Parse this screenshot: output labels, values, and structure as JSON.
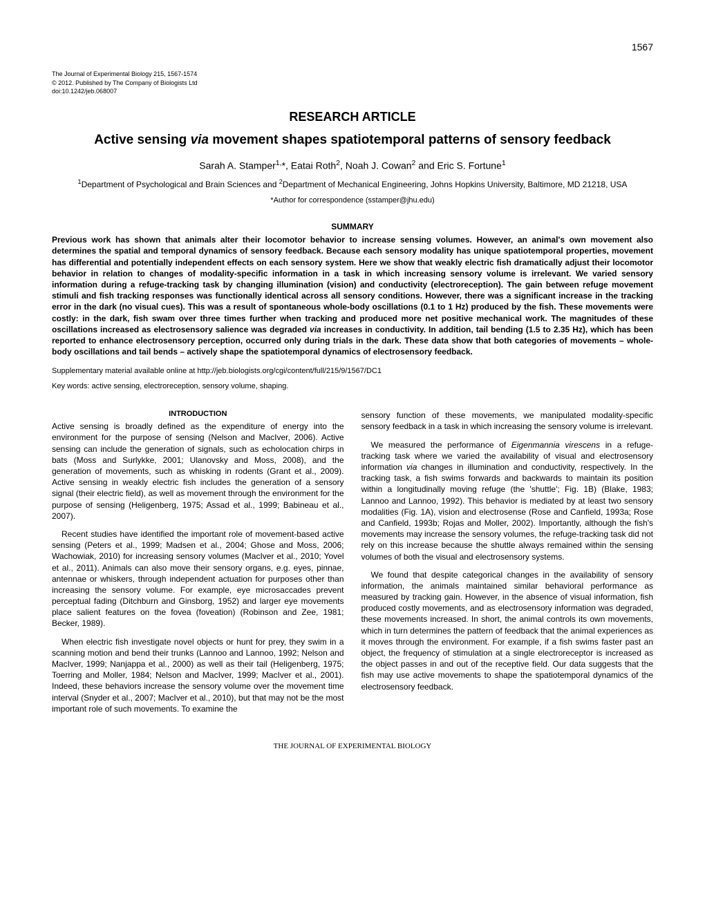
{
  "page_number": "1567",
  "journal_info": {
    "line1": "The Journal of Experimental Biology 215, 1567-1574",
    "line2": "© 2012. Published by The Company of Biologists Ltd",
    "line3": "doi:10.1242/jeb.068007"
  },
  "article_type": "RESEARCH ARTICLE",
  "title_part1": "Active sensing ",
  "title_italic": "via",
  "title_part2": " movement shapes spatiotemporal patterns of sensory feedback",
  "authors_html": "Sarah A. Stamper<sup>1,</sup>*, Eatai Roth<sup>2</sup>, Noah J. Cowan<sup>2</sup> and Eric S. Fortune<sup>1</sup>",
  "affiliations_html": "<sup>1</sup>Department of Psychological and Brain Sciences and <sup>2</sup>Department of Mechanical Engineering, Johns Hopkins University, Baltimore, MD 21218, USA",
  "correspondence": "*Author for correspondence (sstamper@jhu.edu)",
  "summary_heading": "SUMMARY",
  "summary_text_html": "Previous work has shown that animals alter their locomotor behavior to increase sensing volumes. However, an animal's own movement also determines the spatial and temporal dynamics of sensory feedback. Because each sensory modality has unique spatiotemporal properties, movement has differential and potentially independent effects on each sensory system. Here we show that weakly electric fish dramatically adjust their locomotor behavior in relation to changes of modality-specific information in a task in which increasing sensory volume is irrelevant. We varied sensory information during a refuge-tracking task by changing illumination (vision) and conductivity (electroreception). The gain between refuge movement stimuli and fish tracking responses was functionally identical across all sensory conditions. However, there was a significant increase in the tracking error in the dark (no visual cues). This was a result of spontaneous whole-body oscillations (0.1 to 1 Hz) produced by the fish. These movements were costly: in the dark, fish swam over three times further when tracking and produced more net positive mechanical work. The magnitudes of these oscillations increased as electrosensory salience was degraded <span class=\"italic\">via</span> increases in conductivity. In addition, tail bending (1.5 to 2.35 Hz), which has been reported to enhance electrosensory perception, occurred only during trials in the dark. These data show that both categories of movements – whole-body oscillations and tail bends – actively shape the spatiotemporal dynamics of electrosensory feedback.",
  "supplementary": "Supplementary material available online at http://jeb.biologists.org/cgi/content/full/215/9/1567/DC1",
  "keywords": "Key words: active sensing, electroreception, sensory volume, shaping.",
  "intro_heading": "INTRODUCTION",
  "col1_para1": "Active sensing is broadly defined as the expenditure of energy into the environment for the purpose of sensing (Nelson and MacIver, 2006). Active sensing can include the generation of signals, such as echolocation chirps in bats (Moss and Surlykke, 2001; Ulanovsky and Moss, 2008), and the generation of movements, such as whisking in rodents (Grant et al., 2009). Active sensing in weakly electric fish includes the generation of a sensory signal (their electric field), as well as movement through the environment for the purpose of sensing (Heligenberg, 1975; Assad et al., 1999; Babineau et al., 2007).",
  "col1_para2": "Recent studies have identified the important role of movement-based active sensing (Peters et al., 1999; Madsen et al., 2004; Ghose and Moss, 2006; Wachowiak, 2010) for increasing sensory volumes (MacIver et al., 2010; Yovel et al., 2011). Animals can also move their sensory organs, e.g. eyes, pinnae, antennae or whiskers, through independent actuation for purposes other than increasing the sensory volume. For example, eye microsaccades prevent perceptual fading (Ditchburn and Ginsborg, 1952) and larger eye movements place salient features on the fovea (foveation) (Robinson and Zee, 1981; Becker, 1989).",
  "col1_para3": "When electric fish investigate novel objects or hunt for prey, they swim in a scanning motion and bend their trunks (Lannoo and Lannoo, 1992; Nelson and MacIver, 1999; Nanjappa et al., 2000) as well as their tail (Heligenberg, 1975; Toerring and Moller, 1984; Nelson and MacIver, 1999; MacIver et al., 2001). Indeed, these behaviors increase the sensory volume over the movement time interval (Snyder et al., 2007; MacIver et al., 2010), but that may not be the most important role of such movements. To examine the",
  "col2_para1": "sensory function of these movements, we manipulated modality-specific sensory feedback in a task in which increasing the sensory volume is irrelevant.",
  "col2_para2_html": "We measured the performance of <span class=\"italic\">Eigenmannia virescens</span> in a refuge-tracking task where we varied the availability of visual and electrosensory information <span class=\"italic\">via</span> changes in illumination and conductivity, respectively. In the tracking task, a fish swims forwards and backwards to maintain its position within a longitudinally moving refuge (the 'shuttle'; Fig. 1B) (Blake, 1983; Lannoo and Lannoo, 1992). This behavior is mediated by at least two sensory modalities (Fig. 1A), vision and electrosense (Rose and Canfield, 1993a; Rose and Canfield, 1993b; Rojas and Moller, 2002). Importantly, although the fish's movements may increase the sensory volumes, the refuge-tracking task did not rely on this increase because the shuttle always remained within the sensing volumes of both the visual and electrosensory systems.",
  "col2_para3": "We found that despite categorical changes in the availability of sensory information, the animals maintained similar behavioral performance as measured by tracking gain. However, in the absence of visual information, fish produced costly movements, and as electrosensory information was degraded, these movements increased. In short, the animal controls its own movements, which in turn determines the pattern of feedback that the animal experiences as it moves through the environment. For example, if a fish swims faster past an object, the frequency of stimulation at a single electroreceptor is increased as the object passes in and out of the receptive field. Our data suggests that the fish may use active movements to shape the spatiotemporal dynamics of the electrosensory feedback.",
  "footer": "THE JOURNAL OF EXPERIMENTAL BIOLOGY"
}
